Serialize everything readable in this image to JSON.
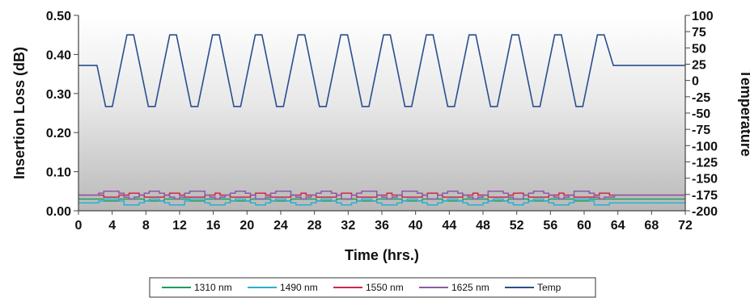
{
  "chart_data": {
    "type": "line",
    "title": "",
    "xlabel": "Time (hrs.)",
    "ylabel": "Insertion Loss (dB)",
    "y2label": "Temperature",
    "xlim": [
      0,
      72
    ],
    "ylim": [
      0,
      0.5
    ],
    "y2lim": [
      -200,
      100
    ],
    "x_ticks": [
      "0",
      "4",
      "8",
      "12",
      "16",
      "20",
      "24",
      "28",
      "32",
      "36",
      "40",
      "44",
      "48",
      "52",
      "56",
      "60",
      "64",
      "68",
      "72"
    ],
    "y_ticks": [
      "0.00",
      "0.10",
      "0.20",
      "0.30",
      "0.40",
      "0.50"
    ],
    "y2_ticks": [
      "100",
      "75",
      "50",
      "25",
      "0",
      "-25",
      "-50",
      "-75",
      "-100",
      "-125",
      "-150",
      "-175",
      "-200"
    ],
    "legend_position": "bottom",
    "temp_cycle": {
      "start_hold": [
        0,
        2.2
      ],
      "start_value": 23,
      "cycles": 12,
      "period_hours": 5.8,
      "high": 70,
      "low": -40,
      "end_value": 23
    },
    "series": [
      {
        "name": "1310 nm",
        "color": "#1a9e5a",
        "axis": "left",
        "base": 0.028,
        "amp": 0.004
      },
      {
        "name": "1490 nm",
        "color": "#2ab0cf",
        "axis": "left",
        "base": 0.022,
        "amp": 0.01
      },
      {
        "name": "1550 nm",
        "color": "#d0284a",
        "axis": "left",
        "base": 0.038,
        "amp": 0.005
      },
      {
        "name": "1625 nm",
        "color": "#8a5aa8",
        "axis": "left",
        "base": 0.042,
        "amp": 0.012
      },
      {
        "name": "Temp",
        "color": "#2a4e8e",
        "axis": "right"
      }
    ]
  }
}
